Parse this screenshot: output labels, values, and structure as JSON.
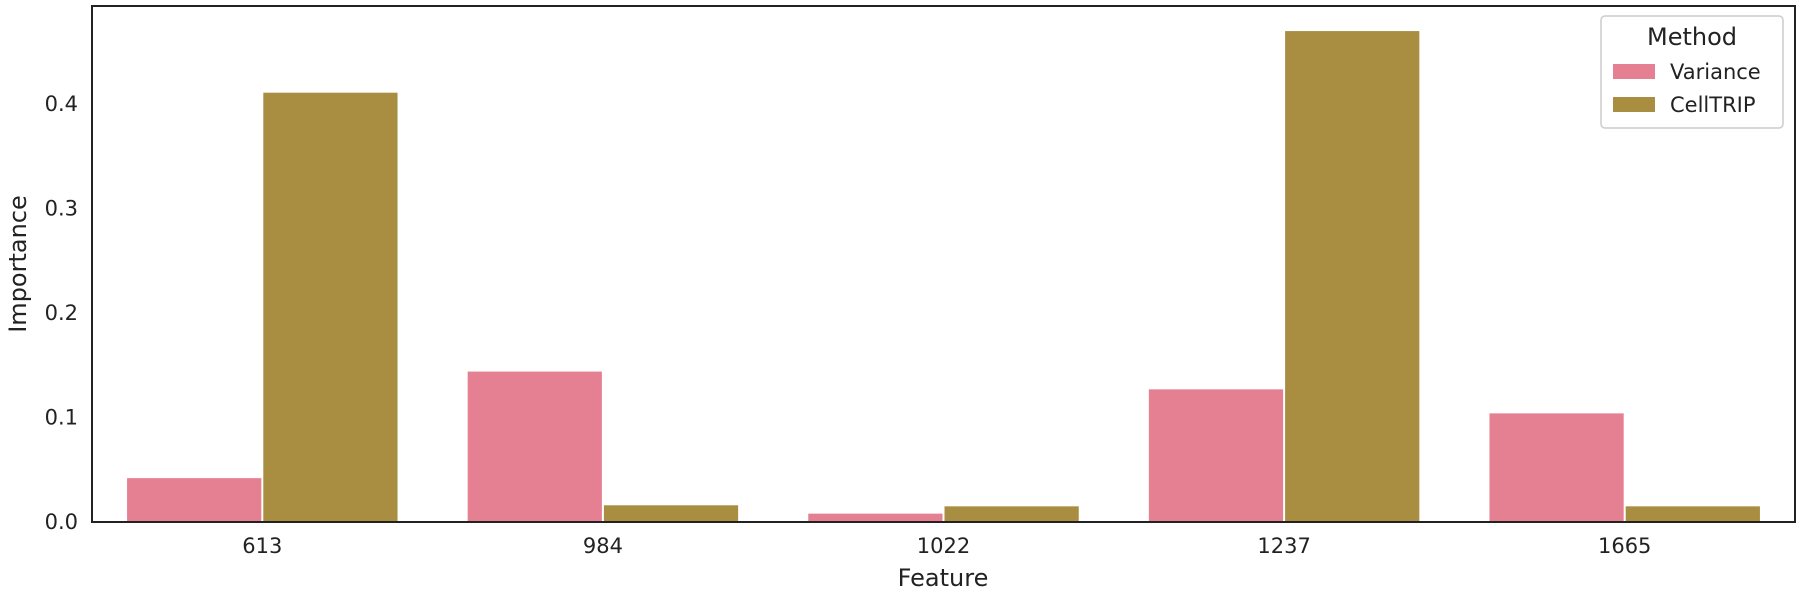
{
  "chart_data": {
    "type": "bar",
    "title": "",
    "xlabel": "Feature",
    "ylabel": "Importance",
    "categories": [
      "613",
      "984",
      "1022",
      "1237",
      "1665"
    ],
    "series": [
      {
        "name": "Variance",
        "color": "#e58093",
        "values": [
          0.042,
          0.144,
          0.008,
          0.127,
          0.104
        ]
      },
      {
        "name": "CellTRIP",
        "color": "#a98e42",
        "values": [
          0.411,
          0.016,
          0.015,
          0.47,
          0.015
        ]
      }
    ],
    "ylim": [
      0,
      0.494
    ],
    "yticks": [
      0.0,
      0.1,
      0.2,
      0.3,
      0.4
    ],
    "ytick_labels": [
      "0.0",
      "0.1",
      "0.2",
      "0.3",
      "0.4"
    ],
    "grid": false,
    "legend": {
      "title": "Method",
      "placement": "top-right"
    }
  }
}
